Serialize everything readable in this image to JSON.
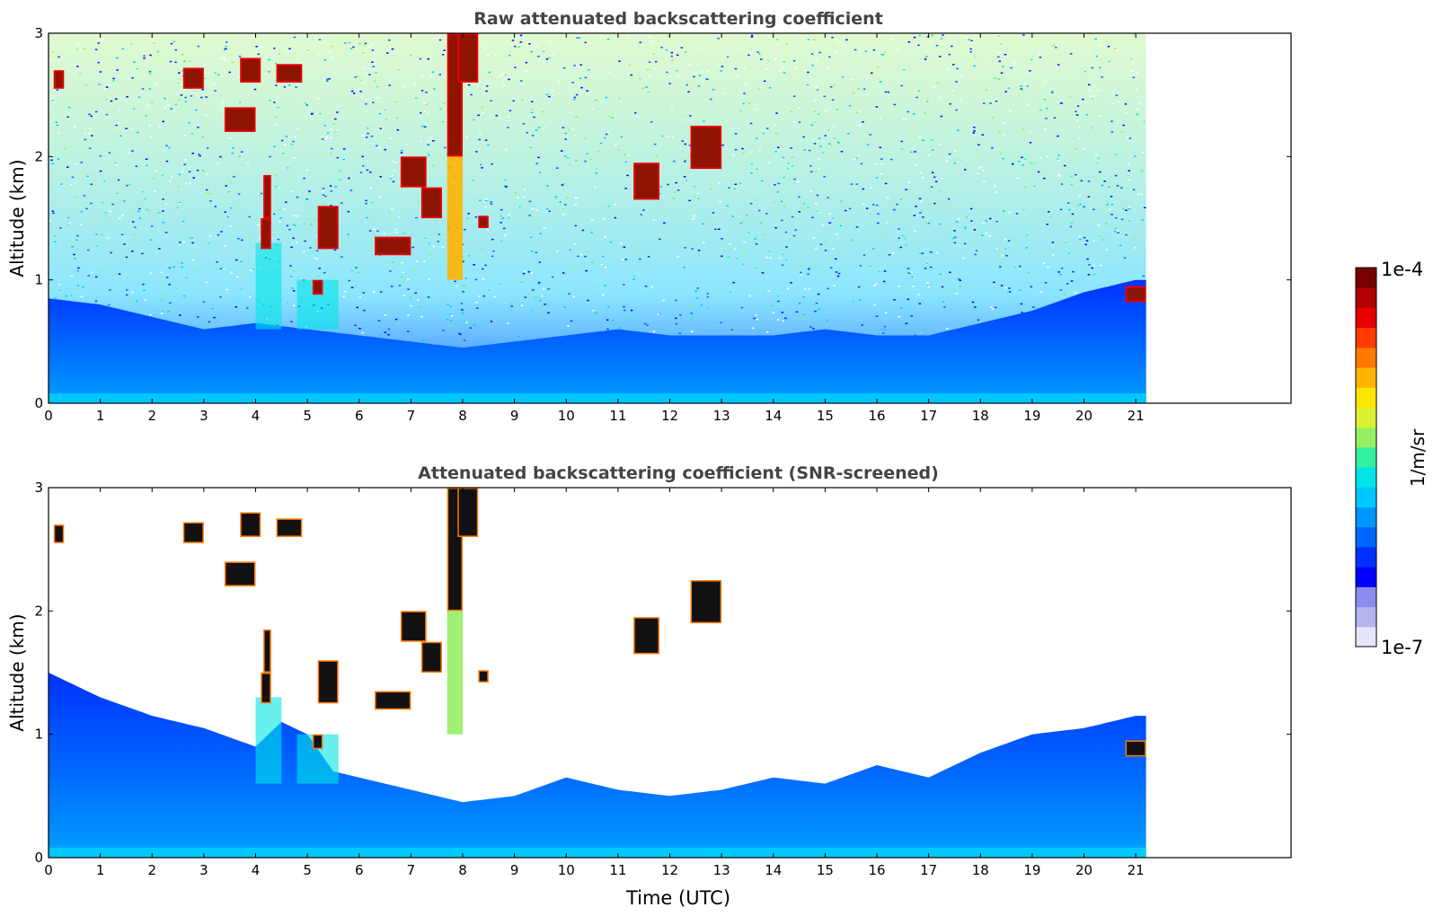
{
  "chart_data": [
    {
      "type": "heatmap",
      "title": "Raw attenuated backscattering coefficient",
      "xlabel": "",
      "ylabel": "Altitude (km)",
      "xlim": [
        0,
        24
      ],
      "ylim": [
        0,
        3
      ],
      "xticks": [
        "0",
        "1",
        "2",
        "3",
        "4",
        "5",
        "6",
        "7",
        "8",
        "9",
        "10",
        "11",
        "12",
        "13",
        "14",
        "15",
        "16",
        "17",
        "18",
        "19",
        "20",
        "21"
      ],
      "yticks": [
        "0",
        "1",
        "2",
        "3"
      ],
      "data_end_time": 21.2,
      "screened": false,
      "boundary_layer_top_km": [
        [
          0,
          0.85
        ],
        [
          1,
          0.8
        ],
        [
          2,
          0.7
        ],
        [
          3,
          0.6
        ],
        [
          4,
          0.65
        ],
        [
          5,
          0.6
        ],
        [
          6,
          0.55
        ],
        [
          7,
          0.5
        ],
        [
          8,
          0.45
        ],
        [
          9,
          0.5
        ],
        [
          10,
          0.55
        ],
        [
          11,
          0.6
        ],
        [
          12,
          0.55
        ],
        [
          13,
          0.55
        ],
        [
          14,
          0.55
        ],
        [
          15,
          0.6
        ],
        [
          16,
          0.55
        ],
        [
          17,
          0.55
        ],
        [
          18,
          0.65
        ],
        [
          19,
          0.75
        ],
        [
          20,
          0.9
        ],
        [
          21,
          1.0
        ],
        [
          21.2,
          1.0
        ]
      ],
      "cloud_features": [
        {
          "t0": 0.1,
          "t1": 0.3,
          "z0": 2.55,
          "z1": 2.7
        },
        {
          "t0": 2.6,
          "t1": 3.0,
          "z0": 2.55,
          "z1": 2.72
        },
        {
          "t0": 3.4,
          "t1": 4.0,
          "z0": 2.2,
          "z1": 2.4
        },
        {
          "t0": 3.7,
          "t1": 4.1,
          "z0": 2.6,
          "z1": 2.8
        },
        {
          "t0": 4.4,
          "t1": 4.9,
          "z0": 2.6,
          "z1": 2.75
        },
        {
          "t0": 4.1,
          "t1": 4.3,
          "z0": 1.25,
          "z1": 1.5
        },
        {
          "t0": 4.15,
          "t1": 4.3,
          "z0": 1.5,
          "z1": 1.85
        },
        {
          "t0": 5.2,
          "t1": 5.6,
          "z0": 1.25,
          "z1": 1.6
        },
        {
          "t0": 5.1,
          "t1": 5.3,
          "z0": 0.88,
          "z1": 1.0
        },
        {
          "t0": 6.3,
          "t1": 7.0,
          "z0": 1.2,
          "z1": 1.35
        },
        {
          "t0": 6.8,
          "t1": 7.3,
          "z0": 1.75,
          "z1": 2.0
        },
        {
          "t0": 7.2,
          "t1": 7.6,
          "z0": 1.5,
          "z1": 1.75
        },
        {
          "t0": 7.7,
          "t1": 8.0,
          "z0": 2.0,
          "z1": 3.0
        },
        {
          "t0": 7.9,
          "t1": 8.3,
          "z0": 2.6,
          "z1": 3.0
        },
        {
          "t0": 8.3,
          "t1": 8.5,
          "z0": 1.42,
          "z1": 1.52
        },
        {
          "t0": 11.3,
          "t1": 11.8,
          "z0": 1.65,
          "z1": 1.95
        },
        {
          "t0": 12.4,
          "t1": 13.0,
          "z0": 1.9,
          "z1": 2.25
        },
        {
          "t0": 20.8,
          "t1": 21.2,
          "z0": 0.82,
          "z1": 0.95
        }
      ],
      "plume": {
        "t0": 7.7,
        "t1": 8.0,
        "z0": 1.0,
        "z1": 3.0
      },
      "aerosol_features": [
        {
          "t0": 4.8,
          "t1": 5.6,
          "z0": 0.6,
          "z1": 1.0
        },
        {
          "t0": 4.0,
          "t1": 4.5,
          "z0": 0.6,
          "z1": 1.3
        }
      ]
    },
    {
      "type": "heatmap",
      "title": "Attenuated backscattering coefficient (SNR-screened)",
      "xlabel": "Time (UTC)",
      "ylabel": "Altitude (km)",
      "xlim": [
        0,
        24
      ],
      "ylim": [
        0,
        3
      ],
      "xticks": [
        "0",
        "1",
        "2",
        "3",
        "4",
        "5",
        "6",
        "7",
        "8",
        "9",
        "10",
        "11",
        "12",
        "13",
        "14",
        "15",
        "16",
        "17",
        "18",
        "19",
        "20",
        "21"
      ],
      "yticks": [
        "0",
        "1",
        "2",
        "3"
      ],
      "data_end_time": 21.2,
      "screened": true,
      "screen_top_km": [
        [
          0,
          1.5
        ],
        [
          0.5,
          1.4
        ],
        [
          1,
          1.3
        ],
        [
          2,
          1.15
        ],
        [
          3,
          1.05
        ],
        [
          4,
          0.9
        ],
        [
          4.5,
          1.1
        ],
        [
          5,
          1.0
        ],
        [
          5.5,
          0.7
        ],
        [
          6,
          0.65
        ],
        [
          7,
          0.55
        ],
        [
          8,
          0.45
        ],
        [
          9,
          0.5
        ],
        [
          10,
          0.65
        ],
        [
          11,
          0.55
        ],
        [
          12,
          0.5
        ],
        [
          13,
          0.55
        ],
        [
          14,
          0.65
        ],
        [
          15,
          0.6
        ],
        [
          16,
          0.75
        ],
        [
          17,
          0.65
        ],
        [
          18,
          0.85
        ],
        [
          19,
          1.0
        ],
        [
          20,
          1.05
        ],
        [
          21,
          1.15
        ],
        [
          21.2,
          1.15
        ]
      ]
    }
  ],
  "colorbar": {
    "top_label": "1e-4",
    "bottom_label": "1e-7",
    "unit_label": "1/m/sr",
    "colors": [
      "#e6e6fa",
      "#b4b4f0",
      "#8c8cf0",
      "#0000ff",
      "#0032ff",
      "#0064ff",
      "#0096ff",
      "#00c8ff",
      "#00e6e6",
      "#32f0a0",
      "#96f064",
      "#dcf032",
      "#ffe600",
      "#ffb400",
      "#ff7800",
      "#ff3c00",
      "#e60000",
      "#b40000",
      "#780000"
    ]
  }
}
